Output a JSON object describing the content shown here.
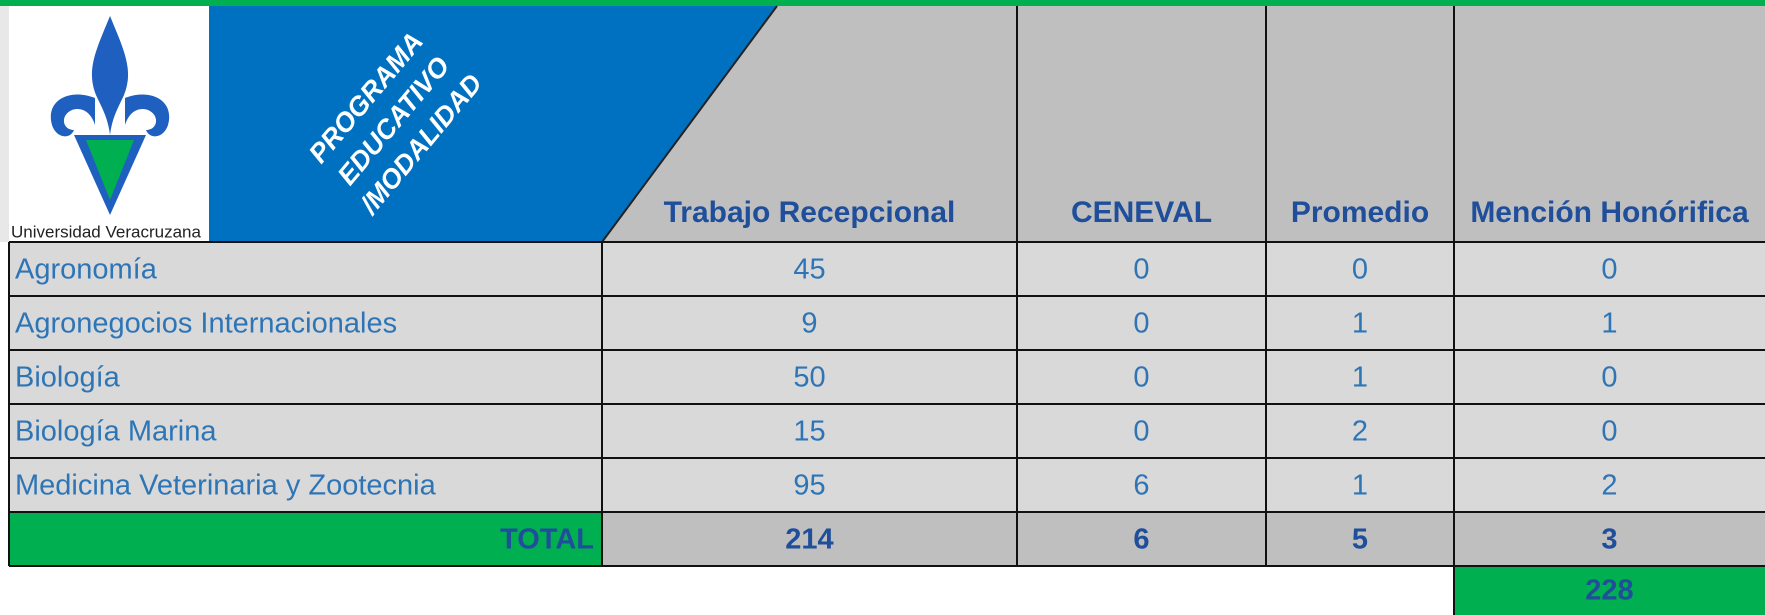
{
  "logo_text": "Universidad Veracruzana",
  "table": {
    "corner_label_lines": [
      "PROGRAMA",
      "EDUCATIVO",
      "/MODALIDAD"
    ],
    "columns": [
      "Trabajo Recepcional",
      "CENEVAL",
      "Promedio",
      "Mención Honórifica"
    ],
    "rows": [
      {
        "program": "Agronomía",
        "values": [
          45,
          0,
          0,
          0
        ]
      },
      {
        "program": "Agronegocios Internacionales",
        "values": [
          9,
          0,
          1,
          1
        ]
      },
      {
        "program": "Biología",
        "values": [
          50,
          0,
          1,
          0
        ]
      },
      {
        "program": "Biología Marina",
        "values": [
          15,
          0,
          2,
          0
        ]
      },
      {
        "program": "Medicina Veterinaria y Zootecnia",
        "values": [
          95,
          6,
          1,
          2
        ]
      }
    ],
    "total": {
      "label": "TOTAL",
      "values": [
        214,
        6,
        5,
        3
      ]
    },
    "grand_total": 228
  }
}
